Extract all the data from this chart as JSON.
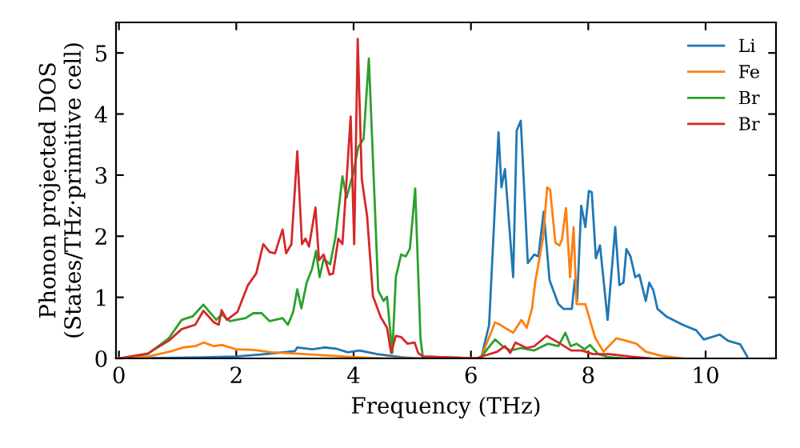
{
  "chart_data": {
    "type": "line",
    "xlabel": "Frequency (THz)",
    "ylabel": "Phonon projected DOS\n(States/THz·primitive cell)",
    "xlim": [
      -0.05,
      11.2
    ],
    "ylim": [
      0,
      5.5
    ],
    "xticks": [
      0,
      2,
      4,
      6,
      8,
      10
    ],
    "yticks": [
      0,
      1,
      2,
      3,
      4,
      5
    ],
    "grid": false,
    "legend": "top right",
    "marker": "none",
    "line_style": "solid",
    "series": [
      {
        "name": "Li",
        "color": "#1f77b4",
        "x": [
          0,
          1.0,
          2.0,
          2.5,
          3.0,
          3.04,
          3.3,
          3.5,
          3.7,
          3.9,
          4.1,
          4.4,
          4.8,
          5.1,
          6.1,
          6.18,
          6.31,
          6.47,
          6.52,
          6.58,
          6.72,
          6.78,
          6.85,
          6.97,
          7.08,
          7.15,
          7.24,
          7.34,
          7.49,
          7.58,
          7.72,
          7.77,
          7.81,
          7.88,
          7.95,
          8.01,
          8.06,
          8.13,
          8.2,
          8.33,
          8.46,
          8.53,
          8.6,
          8.65,
          8.72,
          8.8,
          8.87,
          8.98,
          9.04,
          9.11,
          9.18,
          9.34,
          9.61,
          9.84,
          9.97,
          10.24,
          10.38,
          10.59,
          10.71
        ],
        "values": [
          0,
          0.01,
          0.03,
          0.07,
          0.12,
          0.18,
          0.15,
          0.18,
          0.16,
          0.1,
          0.13,
          0.07,
          0.02,
          0,
          0,
          0.03,
          0.55,
          3.7,
          2.8,
          3.1,
          1.33,
          3.73,
          3.89,
          1.56,
          1.7,
          1.67,
          2.4,
          1.28,
          0.89,
          0.81,
          0.81,
          1.28,
          0.94,
          2.5,
          2.15,
          2.74,
          2.72,
          1.64,
          1.85,
          0.63,
          2.15,
          1.2,
          1.24,
          1.79,
          1.67,
          1.33,
          1.37,
          0.94,
          1.24,
          1.11,
          0.81,
          0.68,
          0.55,
          0.46,
          0.31,
          0.39,
          0.29,
          0.23,
          0.03
        ]
      },
      {
        "name": "Fe",
        "color": "#ff7f0e",
        "x": [
          0,
          0.5,
          0.9,
          1.1,
          1.3,
          1.44,
          1.62,
          1.75,
          2.0,
          2.3,
          2.6,
          3.0,
          3.5,
          4.0,
          4.5,
          6.1,
          6.18,
          6.41,
          6.5,
          6.58,
          6.72,
          6.86,
          6.95,
          7.04,
          7.1,
          7.15,
          7.23,
          7.3,
          7.35,
          7.44,
          7.51,
          7.55,
          7.62,
          7.69,
          7.75,
          7.8,
          7.95,
          8.12,
          8.26,
          8.48,
          8.64,
          8.82,
          8.98,
          9.25,
          9.61
        ],
        "values": [
          0,
          0.03,
          0.12,
          0.18,
          0.2,
          0.26,
          0.2,
          0.22,
          0.15,
          0.14,
          0.1,
          0.08,
          0.05,
          0.02,
          0,
          0,
          0.03,
          0.59,
          0.55,
          0.5,
          0.42,
          0.63,
          0.5,
          0.81,
          1.28,
          1.54,
          1.98,
          2.8,
          2.76,
          1.89,
          1.85,
          1.94,
          2.46,
          1.33,
          2.15,
          0.89,
          0.89,
          0.33,
          0.11,
          0.33,
          0.29,
          0.24,
          0.11,
          0.04,
          0
        ]
      },
      {
        "name": "Br",
        "color": "#2ca02c",
        "x": [
          0,
          0.49,
          0.85,
          1.07,
          1.26,
          1.44,
          1.66,
          1.75,
          1.89,
          2.16,
          2.29,
          2.43,
          2.57,
          2.79,
          2.88,
          2.97,
          3.04,
          3.11,
          3.2,
          3.29,
          3.36,
          3.42,
          3.49,
          3.6,
          3.69,
          3.81,
          3.88,
          3.99,
          4.08,
          4.17,
          4.26,
          4.34,
          4.42,
          4.51,
          4.57,
          4.66,
          4.72,
          4.81,
          4.89,
          4.96,
          5.05,
          5.14,
          5.18,
          6.1,
          6.18,
          6.41,
          6.54,
          6.67,
          6.86,
          7.08,
          7.31,
          7.49,
          7.61,
          7.7,
          7.8,
          7.94,
          8.03,
          8.17,
          8.35,
          8.6
        ],
        "values": [
          0,
          0.07,
          0.33,
          0.63,
          0.69,
          0.88,
          0.63,
          0.72,
          0.61,
          0.66,
          0.74,
          0.74,
          0.61,
          0.66,
          0.55,
          0.76,
          1.13,
          0.82,
          1.24,
          1.46,
          1.76,
          1.33,
          1.63,
          1.54,
          1.98,
          2.98,
          2.63,
          3.02,
          3.46,
          3.59,
          4.91,
          3.02,
          1.11,
          0.94,
          1.01,
          0.09,
          1.33,
          1.7,
          1.67,
          1.8,
          2.78,
          0.33,
          0.03,
          0,
          0.03,
          0.31,
          0.2,
          0.13,
          0.17,
          0.13,
          0.24,
          0.2,
          0.42,
          0.2,
          0.24,
          0.15,
          0.22,
          0.07,
          0.02,
          0
        ]
      },
      {
        "name": "Br",
        "color": "#d62728",
        "x": [
          0,
          0.49,
          0.85,
          1.07,
          1.3,
          1.44,
          1.62,
          1.7,
          1.75,
          1.84,
          2.02,
          2.2,
          2.34,
          2.46,
          2.57,
          2.66,
          2.79,
          2.85,
          2.94,
          3.04,
          3.12,
          3.18,
          3.24,
          3.35,
          3.41,
          3.49,
          3.59,
          3.65,
          3.74,
          3.81,
          3.95,
          4.01,
          4.07,
          4.14,
          4.23,
          4.33,
          4.46,
          4.57,
          4.64,
          4.72,
          4.81,
          4.92,
          5.04,
          5.1,
          5.18,
          6.1,
          6.18,
          6.45,
          6.58,
          6.67,
          6.76,
          6.95,
          7.08,
          7.29,
          7.49,
          7.71,
          7.89,
          8.08,
          8.35,
          8.71,
          9.07
        ],
        "values": [
          0,
          0.08,
          0.29,
          0.48,
          0.55,
          0.78,
          0.59,
          0.55,
          0.79,
          0.63,
          0.76,
          1.2,
          1.39,
          1.87,
          1.74,
          1.72,
          2.11,
          1.72,
          1.87,
          3.39,
          1.87,
          1.96,
          1.83,
          2.47,
          1.61,
          1.7,
          1.37,
          1.39,
          1.96,
          1.87,
          3.96,
          1.87,
          5.23,
          2.93,
          2.33,
          1.02,
          0.68,
          0.5,
          0.09,
          0.37,
          0.35,
          0.24,
          0.26,
          0.09,
          0.03,
          0,
          0.03,
          0.11,
          0.2,
          0.09,
          0.26,
          0.17,
          0.2,
          0.37,
          0.26,
          0.13,
          0.13,
          0.07,
          0.07,
          0.03,
          0
        ]
      }
    ]
  }
}
